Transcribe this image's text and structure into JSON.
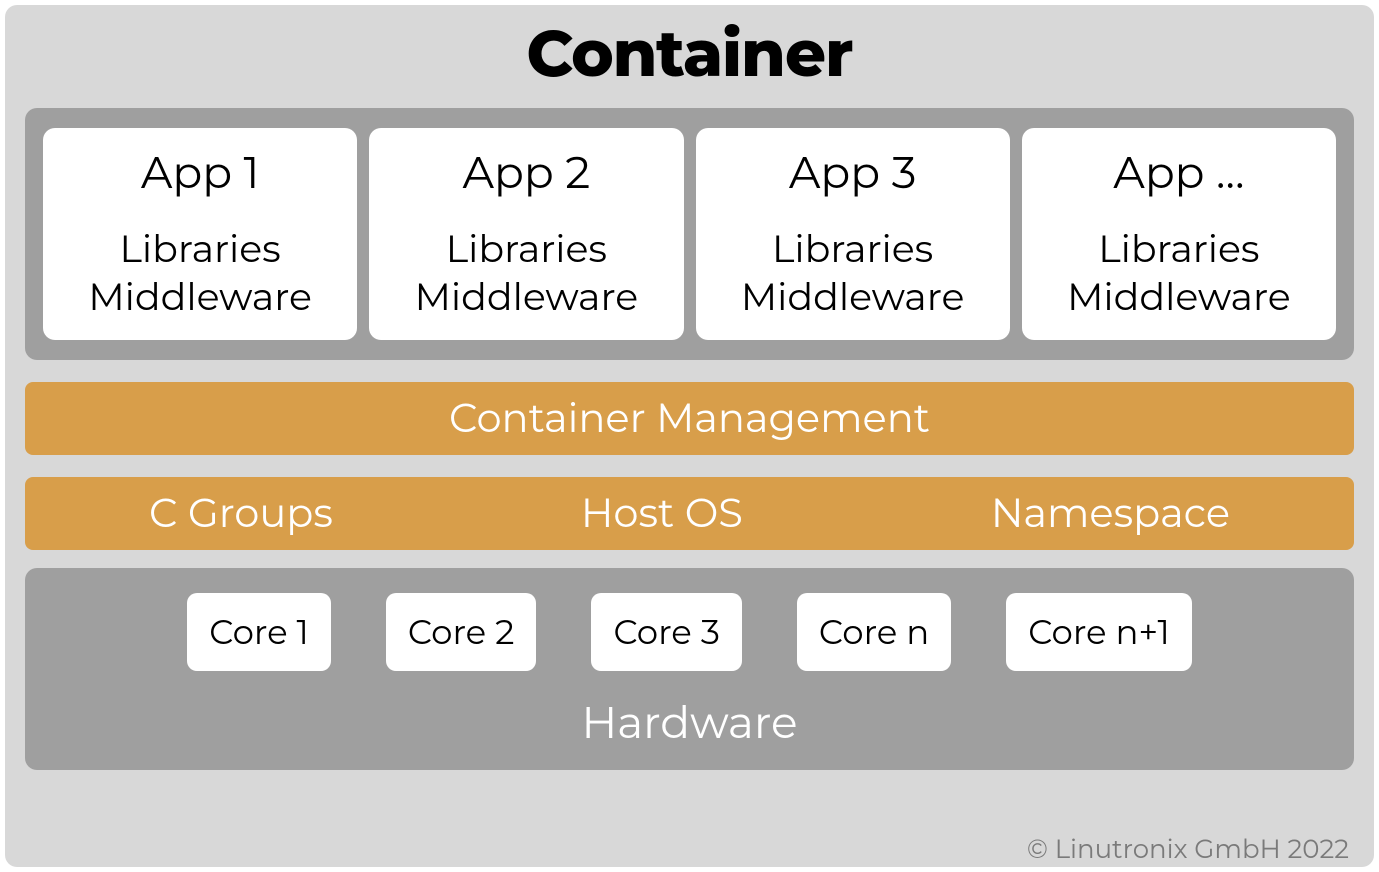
{
  "diagram": {
    "type": "infographic",
    "title": "Container",
    "title_fontsize": 64,
    "title_color": "#000000",
    "background_color": "#d8d8d8",
    "apps_section": {
      "background_color": "#9f9f9f",
      "box_background": "#ffffff",
      "title_fontsize": 44,
      "sub_fontsize": 38,
      "apps": [
        {
          "title": "App 1",
          "line1": "Libraries",
          "line2": "Middleware"
        },
        {
          "title": "App 2",
          "line1": "Libraries",
          "line2": "Middleware"
        },
        {
          "title": "App 3",
          "line1": "Libraries",
          "line2": "Middleware"
        },
        {
          "title": "App …",
          "line1": "Libraries",
          "line2": "Middleware"
        }
      ]
    },
    "management_section": {
      "label": "Container Management",
      "background_color": "#d89e4a",
      "text_color": "#ffffff",
      "fontsize": 40
    },
    "os_section": {
      "background_color": "#d89e4a",
      "text_color": "#ffffff",
      "fontsize": 40,
      "items": [
        "C Groups",
        "Host OS",
        "Namespace"
      ]
    },
    "hardware_section": {
      "background_color": "#9f9f9f",
      "label": "Hardware",
      "label_color": "#ffffff",
      "label_fontsize": 44,
      "core_fontsize": 34,
      "core_background": "#ffffff",
      "cores": [
        "Core 1",
        "Core 2",
        "Core 3",
        "Core n",
        "Core n+1"
      ]
    },
    "copyright": {
      "text": "© Linutronix GmbH 2022",
      "color": "#7a7a7a",
      "fontsize": 26
    }
  }
}
